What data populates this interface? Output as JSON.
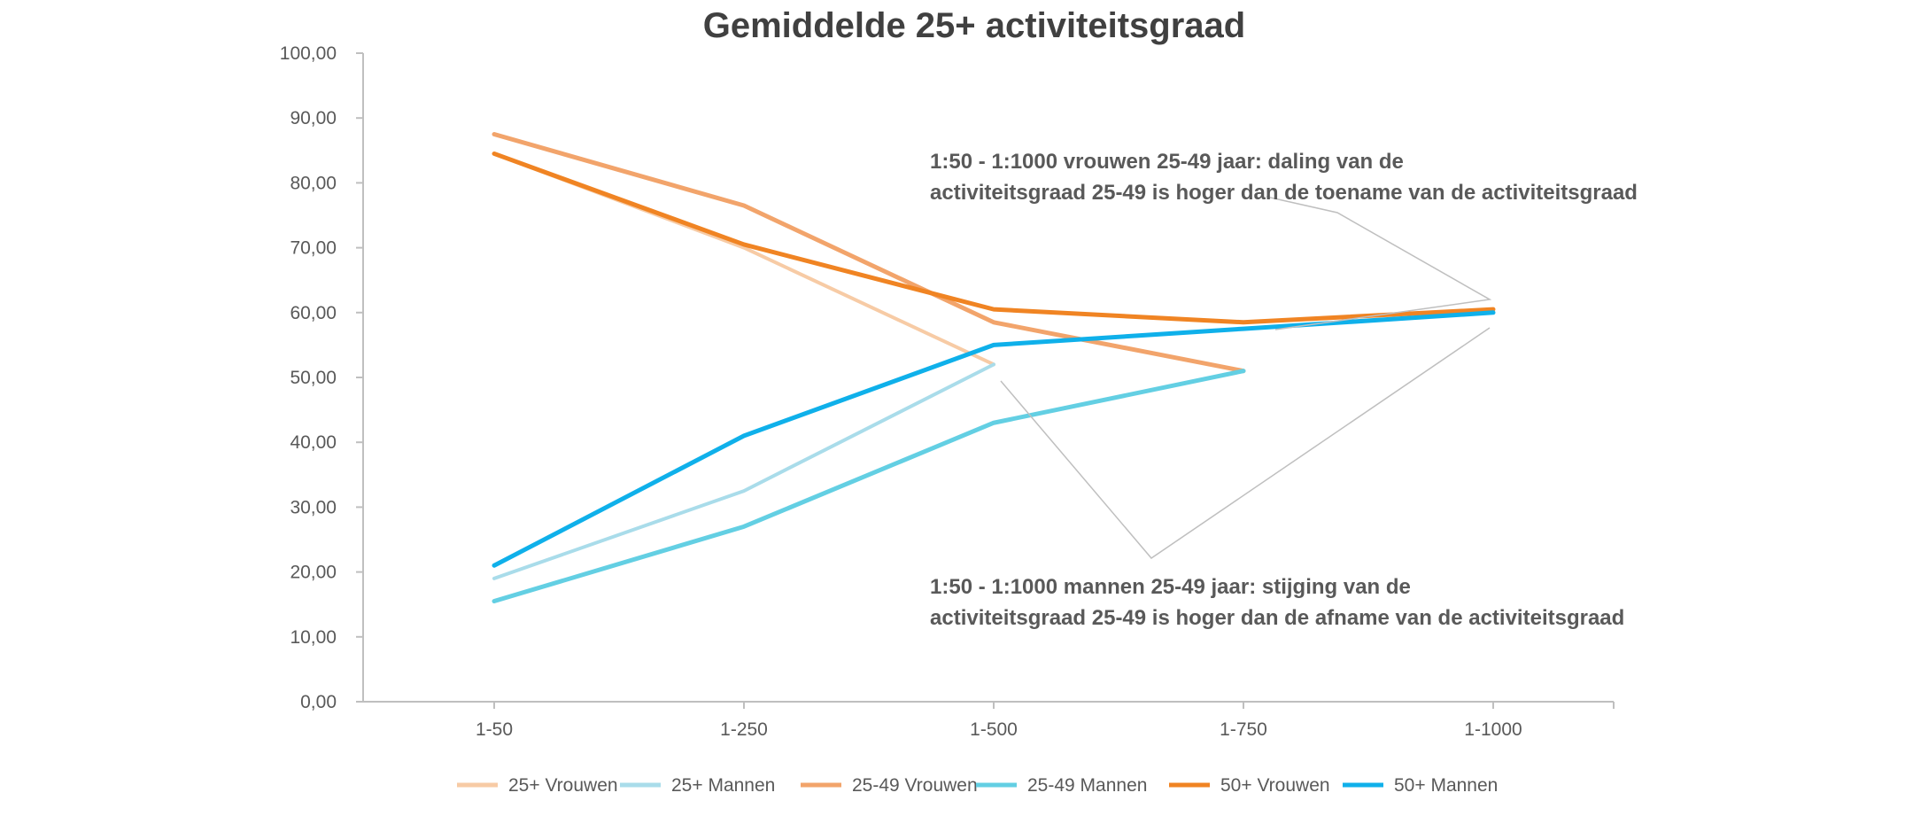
{
  "chart_data": {
    "type": "line",
    "title": "Gemiddelde 25+ activiteitsgraad",
    "xlabel": "",
    "ylabel": "",
    "categories": [
      "1-50",
      "1-250",
      "1-500",
      "1-750",
      "1-1000"
    ],
    "ylim": [
      0,
      100
    ],
    "yticks": [
      "0,00",
      "10,00",
      "20,00",
      "30,00",
      "40,00",
      "50,00",
      "60,00",
      "70,00",
      "80,00",
      "90,00",
      "100,00"
    ],
    "series": [
      {
        "name": "25+ Vrouwen",
        "color": "#f7cba5",
        "width": 4,
        "values": [
          84.5,
          70.0,
          52.0,
          null,
          null
        ]
      },
      {
        "name": "25+ Mannen",
        "color": "#a9dcea",
        "width": 4,
        "values": [
          19.0,
          32.5,
          52.0,
          null,
          null
        ]
      },
      {
        "name": "25-49 Vrouwen",
        "color": "#f2a46b",
        "width": 5,
        "values": [
          87.5,
          76.5,
          58.5,
          51.0,
          null
        ]
      },
      {
        "name": "25-49 Mannen",
        "color": "#63cfe3",
        "width": 5,
        "values": [
          15.5,
          27.0,
          43.0,
          51.0,
          null
        ]
      },
      {
        "name": "50+ Vrouwen",
        "color": "#f08423",
        "width": 5,
        "values": [
          84.5,
          70.5,
          60.5,
          58.5,
          60.5
        ]
      },
      {
        "name": "50+ Mannen",
        "color": "#0fb0ea",
        "width": 5,
        "values": [
          21.0,
          41.0,
          55.0,
          57.5,
          60.0
        ]
      }
    ],
    "annotations": [
      {
        "lines": [
          "1:50 - 1:1000 vrouwen 25-49 jaar: daling van de",
          "activiteitsgraad 25-49 is hoger dan de toename van de activiteitsgraad"
        ]
      },
      {
        "lines": [
          "1:50 - 1:1000 mannen 25-49 jaar: stijging van de",
          "activiteitsgraad 25-49 is hoger dan de afname van de activiteitsgraad"
        ]
      }
    ],
    "legend_position": "bottom",
    "grid": false
  }
}
